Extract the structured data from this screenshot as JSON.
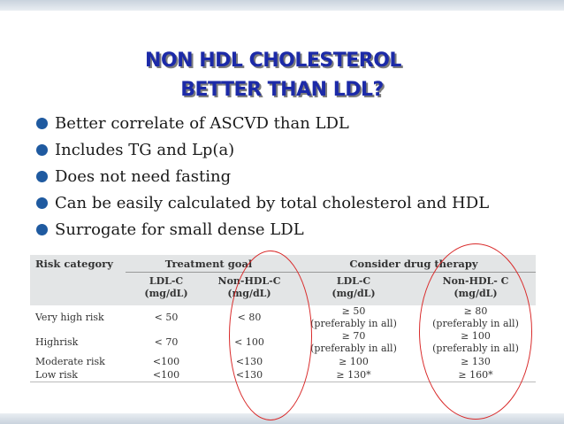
{
  "title": {
    "line1": "NON HDL CHOLESTEROL",
    "line2": "BETTER THAN LDL?"
  },
  "bullets": [
    "Better correlate of ASCVD than LDL",
    "Includes TG and Lp(a)",
    "Does not need fasting",
    "Can be easily calculated by total cholesterol and HDL",
    "Surrogate for small dense LDL"
  ],
  "table": {
    "header": {
      "risk_category": "Risk category",
      "treatment_goal": "Treatment goal",
      "consider_drug": "Consider drug therapy"
    },
    "subheaders": {
      "tg_ldl": [
        "LDL-C",
        "(mg/dL)"
      ],
      "tg_nonhdl": [
        "Non-HDL-C",
        "(mg/dL)"
      ],
      "dt_ldl": [
        "LDL-C",
        "(mg/dL)"
      ],
      "dt_nonhdl": [
        "Non-HDL- C",
        "(mg/dL)"
      ]
    },
    "rows": [
      {
        "category": "Very high risk",
        "tg_ldl": "< 50",
        "tg_nonhdl": "< 80",
        "dt_ldl": [
          "≥ 50",
          "(preferably in all)"
        ],
        "dt_nonhdl": [
          "≥ 80",
          "(preferably in all)"
        ]
      },
      {
        "category": "Highrisk",
        "tg_ldl": "< 70",
        "tg_nonhdl": "< 100",
        "dt_ldl": [
          "≥ 70",
          "(preferably in all)"
        ],
        "dt_nonhdl": [
          "≥ 100",
          "(preferably in all)"
        ]
      },
      {
        "category": "Moderate risk",
        "tg_ldl": "<100",
        "tg_nonhdl": "<130",
        "dt_ldl": [
          "≥ 100"
        ],
        "dt_nonhdl": [
          "≥ 130"
        ]
      },
      {
        "category": "Low risk",
        "tg_ldl": "<100",
        "tg_nonhdl": "<130",
        "dt_ldl": [
          "≥ 130*"
        ],
        "dt_nonhdl": [
          "≥ 160*"
        ]
      }
    ]
  },
  "colors": {
    "title": "#1c2aa8",
    "bullet": "#1f5aa0",
    "annotation_ellipse": "#d92b2b",
    "table_header_bg": "#e3e5e6"
  },
  "icons": {
    "bullet": "filled-circle-bullet-icon"
  }
}
